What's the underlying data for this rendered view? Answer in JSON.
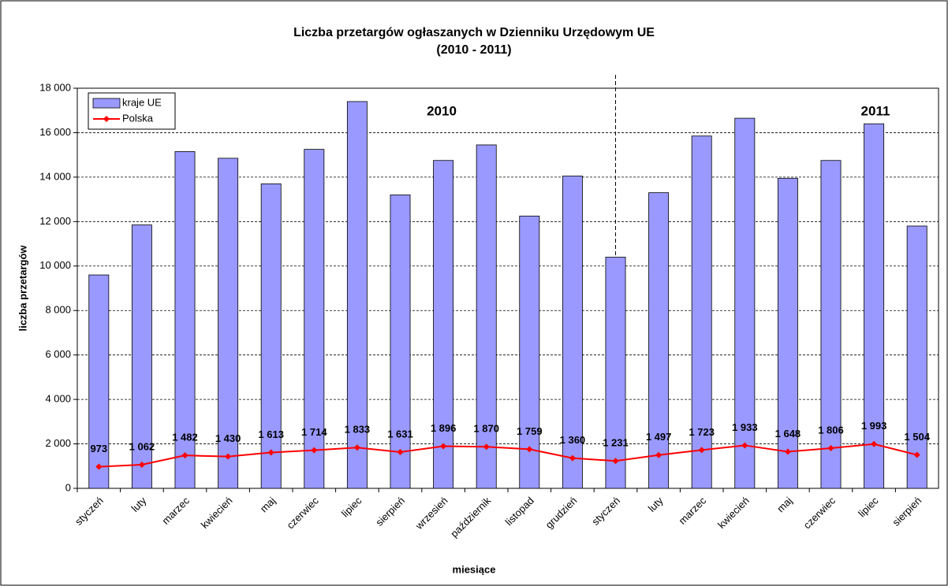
{
  "chart_data": {
    "type": "bar_line",
    "title": "Liczba przetargów ogłaszanych w Dzienniku Urzędowym UE",
    "subtitle": "(2010 - 2011)",
    "x_label": "miesiące",
    "y_label": "liczba przetargów",
    "annotations": [
      "2010",
      "2011"
    ],
    "categories": [
      "styczeń",
      "luty",
      "marzec",
      "kwiecień",
      "maj",
      "czerwiec",
      "lipiec",
      "sierpień",
      "wrzesień",
      "październik",
      "listopad",
      "grudzień",
      "styczeń",
      "luty",
      "marzec",
      "kwiecień",
      "maj",
      "czerwiec",
      "lipiec",
      "sierpień"
    ],
    "series": [
      {
        "name": "kraje UE",
        "type": "bar",
        "color": "#9999ff",
        "values": [
          9600,
          11850,
          15150,
          14850,
          13700,
          15250,
          17400,
          13200,
          14750,
          15450,
          12250,
          14050,
          10400,
          13300,
          15850,
          16650,
          13950,
          14750,
          16400,
          11800
        ]
      },
      {
        "name": "Polska",
        "type": "line",
        "color": "#ff0000",
        "values": [
          973,
          1062,
          1482,
          1430,
          1613,
          1714,
          1833,
          1631,
          1896,
          1870,
          1759,
          1360,
          1231,
          1497,
          1723,
          1933,
          1648,
          1806,
          1993,
          1504
        ],
        "value_labels": [
          "973",
          "1 062",
          "1 482",
          "1 430",
          "1 613",
          "1 714",
          "1 833",
          "1 631",
          "1 896",
          "1 870",
          "1 759",
          "1 360",
          "1 231",
          "1 497",
          "1 723",
          "1 933",
          "1 648",
          "1 806",
          "1 993",
          "1 504"
        ]
      }
    ],
    "ylim": [
      0,
      18000
    ],
    "yticks": [
      0,
      {
        "value": 2000,
        "label": "2 000"
      },
      {
        "value": 4000,
        "label": "4 000"
      },
      {
        "value": 6000,
        "label": "6 000"
      },
      {
        "value": 8000,
        "label": "8 000"
      },
      {
        "value": 10000,
        "label": "10 000"
      },
      {
        "value": 12000,
        "label": "12 000"
      },
      {
        "value": 14000,
        "label": "14 000"
      },
      {
        "value": 16000,
        "label": "16 000"
      },
      {
        "value": 18000,
        "label": "18 000"
      }
    ],
    "grid": true,
    "legend": "top-left"
  }
}
